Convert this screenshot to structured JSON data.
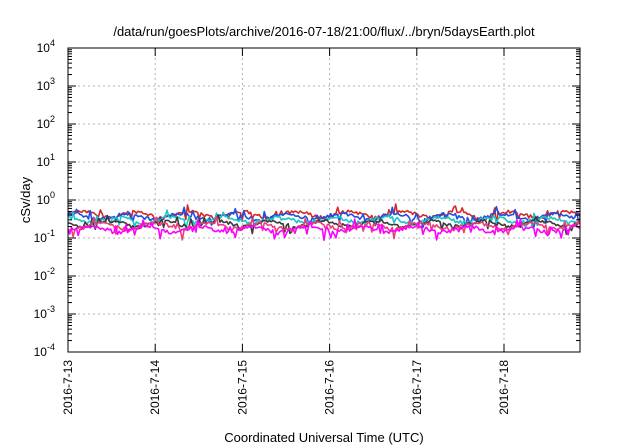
{
  "chart_data": {
    "type": "line",
    "title": "/data/run/goesPlots/archive/2016-07-18/21:00/flux/../bryn/5daysEarth.plot",
    "xlabel": "Coordinated Universal Time (UTC)",
    "ylabel": "cSv/day",
    "yscale": "log",
    "ylim": [
      0.0001,
      10000
    ],
    "xlim": [
      "2016-07-13",
      "2016-07-18 21:00"
    ],
    "x_ticks": [
      "2016-7-13",
      "2016-7-14",
      "2016-7-15",
      "2016-7-16",
      "2016-7-17",
      "2016-7-18"
    ],
    "y_ticks": [
      {
        "base": "10",
        "exp": "4"
      },
      {
        "base": "10",
        "exp": "3"
      },
      {
        "base": "10",
        "exp": "2"
      },
      {
        "base": "10",
        "exp": "1"
      },
      {
        "base": "10",
        "exp": "0"
      },
      {
        "base": "10",
        "exp": "-1"
      },
      {
        "base": "10",
        "exp": "-2"
      },
      {
        "base": "10",
        "exp": "-3"
      },
      {
        "base": "10",
        "exp": "-4"
      }
    ],
    "grid": true,
    "legend": "none",
    "series": [
      {
        "color": "#d62728",
        "base_value": 0.42
      },
      {
        "color": "#1f4fe0",
        "base_value": 0.37
      },
      {
        "color": "#17c7c7",
        "base_value": 0.3
      },
      {
        "color": "#3a3a3a",
        "base_value": 0.24
      },
      {
        "color": "#e8407a",
        "base_value": 0.21
      },
      {
        "color": "#ff00ff",
        "base_value": 0.17
      }
    ]
  }
}
